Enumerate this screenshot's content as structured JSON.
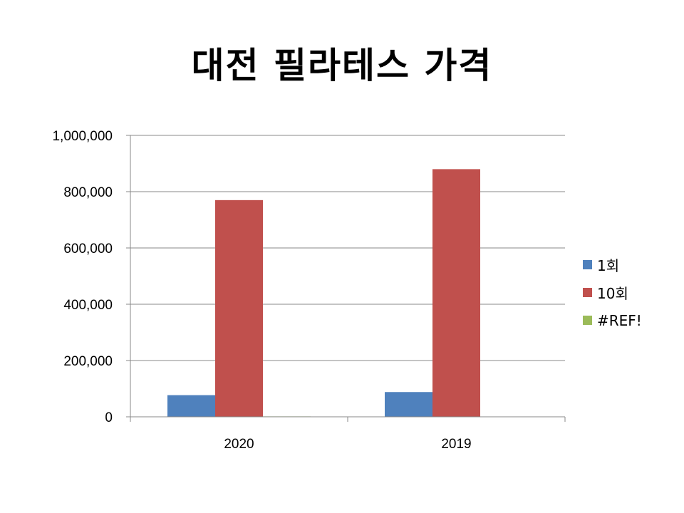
{
  "chart_data": {
    "type": "bar",
    "title": "대전 필라테스 가격",
    "categories": [
      "2020",
      "2019"
    ],
    "series": [
      {
        "name": "1회",
        "color": "#4F81BD",
        "values": [
          77000,
          88000
        ]
      },
      {
        "name": "10회",
        "color": "#C0504D",
        "values": [
          770000,
          880000
        ]
      },
      {
        "name": "#REF!",
        "color": "#9BBB59",
        "values": [
          1500,
          0
        ]
      }
    ],
    "ylim": [
      0,
      1000000
    ],
    "yticks": [
      "0",
      "200,000",
      "400,000",
      "600,000",
      "800,000",
      "1,000,000"
    ],
    "ytick_values": [
      0,
      200000,
      400000,
      600000,
      800000,
      1000000
    ],
    "grid": true,
    "legend_position": "right"
  }
}
